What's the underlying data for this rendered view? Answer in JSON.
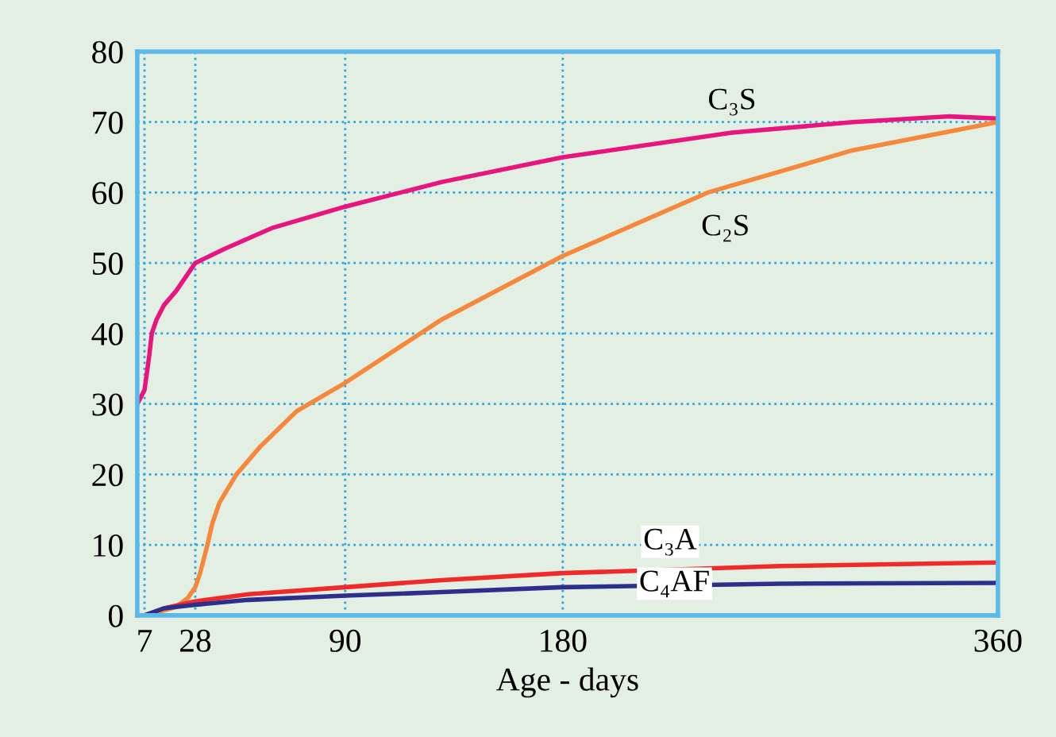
{
  "chart_data": {
    "type": "line",
    "xlabel": "Age - days",
    "xlim": [
      4,
      360
    ],
    "xticks": [
      7,
      28,
      90,
      180,
      360
    ],
    "ylim": [
      0,
      80
    ],
    "yticks": [
      0,
      10,
      20,
      30,
      40,
      50,
      60,
      70,
      80
    ],
    "grid": true,
    "line_style": "solid",
    "marker": "none",
    "series": [
      {
        "name": "C₃S",
        "color": "#e8157f",
        "x": [
          4,
          7,
          9,
          10,
          12,
          15,
          20,
          28,
          40,
          60,
          90,
          130,
          180,
          250,
          300,
          340,
          360
        ],
        "values": [
          30,
          32,
          37,
          40,
          42,
          44,
          46,
          50,
          52,
          55,
          58,
          61.5,
          65,
          68.5,
          70,
          70.8,
          70.5
        ]
      },
      {
        "name": "C₂S",
        "color": "#f5883a",
        "x": [
          7,
          15,
          20,
          25,
          28,
          30,
          33,
          35,
          38,
          45,
          55,
          70,
          90,
          130,
          180,
          240,
          300,
          360
        ],
        "values": [
          0,
          0.7,
          1.2,
          2.5,
          4,
          6,
          10,
          13,
          16,
          20,
          24,
          29,
          33,
          42,
          51,
          60,
          66,
          70
        ]
      },
      {
        "name": "C₃A",
        "color": "#ee2a2a",
        "x": [
          7,
          15,
          28,
          50,
          90,
          130,
          180,
          270,
          360
        ],
        "values": [
          0,
          1,
          2,
          3,
          4,
          5,
          6,
          7,
          7.5
        ]
      },
      {
        "name": "C₄AF",
        "color": "#2e2e8c",
        "x": [
          7,
          15,
          28,
          50,
          90,
          130,
          180,
          270,
          360
        ],
        "values": [
          0,
          1,
          1.5,
          2.2,
          2.8,
          3.3,
          4,
          4.5,
          4.6
        ]
      }
    ]
  }
}
